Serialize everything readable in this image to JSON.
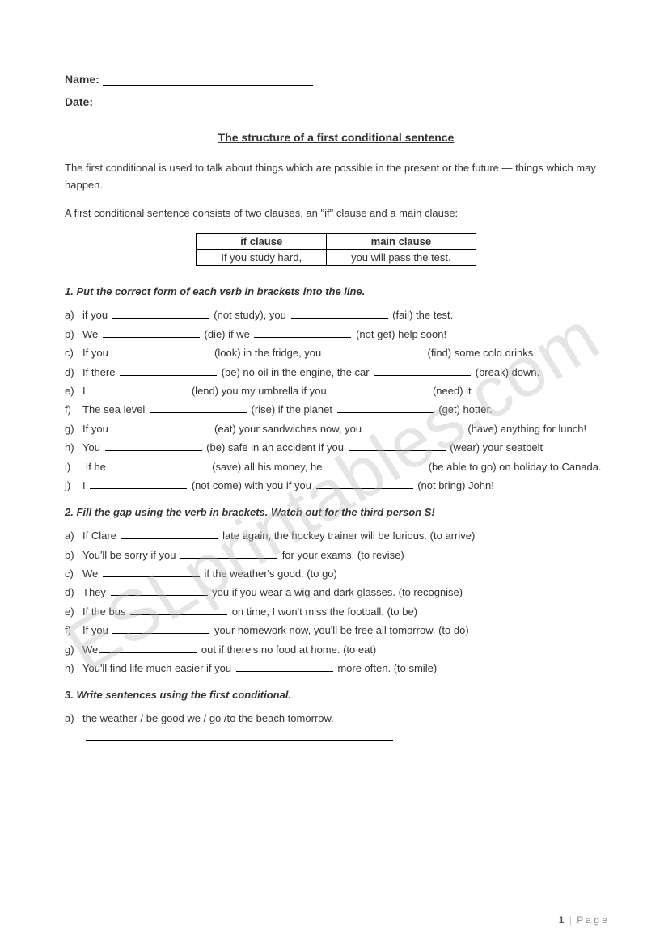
{
  "header": {
    "name_label": "Name:",
    "date_label": "Date:"
  },
  "title": "The structure of a first conditional sentence",
  "intro1": "The first conditional is used to talk about things which are possible in the present or the future — things which may happen.",
  "intro2": "A first conditional sentence consists of two clauses, an \"if\" clause and a main clause:",
  "table": {
    "h1": "if clause",
    "h2": "main clause",
    "c1": "If you study hard,",
    "c2": "you will pass the test."
  },
  "s1": {
    "head": "1. Put the correct form of each verb in brackets into the line.",
    "items": [
      {
        "l": "a)",
        "pre": "if you ",
        "mid1": " (not study), you ",
        "post": " (fail) the test."
      },
      {
        "l": "b)",
        "pre": "We ",
        "mid1": " (die) if we ",
        "post": " (not get) help soon!"
      },
      {
        "l": "c)",
        "pre": "If you ",
        "mid1": " (look) in the fridge, you ",
        "post": " (find) some cold drinks."
      },
      {
        "l": "d)",
        "pre": "If there ",
        "mid1": " (be) no oil in the engine, the car ",
        "post": " (break) down."
      },
      {
        "l": "e)",
        "pre": "I ",
        "mid1": " (lend) you my umbrella if you ",
        "post": " (need) it"
      },
      {
        "l": "f)",
        "pre": "The sea level ",
        "mid1": " (rise) if the planet ",
        "post": " (get) hotter."
      },
      {
        "l": "g)",
        "pre": "If you ",
        "mid1": " (eat) your sandwiches now, you ",
        "post": " (have) anything for lunch!"
      },
      {
        "l": "h)",
        "pre": "You ",
        "mid1": " (be) safe in an accident if you ",
        "post": " (wear) your seatbelt"
      },
      {
        "l": "i)",
        "pre": " If he ",
        "mid1": " (save) all his money, he ",
        "post": " (be able to go) on holiday to Canada."
      },
      {
        "l": "j)",
        "pre": "I ",
        "mid1": " (not come) with you if you ",
        "post": " (not bring) John!"
      }
    ]
  },
  "s2": {
    "head": "2. Fill the gap using the verb in brackets. Watch out for the third person S!",
    "items": [
      {
        "l": "a)",
        "pre": "If Clare ",
        "post": " late again, the hockey trainer will be furious. (to arrive)"
      },
      {
        "l": "b)",
        "pre": "You'll be sorry if you ",
        "post": "  for your exams. (to revise)"
      },
      {
        "l": "c)",
        "pre": "We ",
        "post": " if the weather's good. (to go)"
      },
      {
        "l": "d)",
        "pre": "They ",
        "post": " you if you wear a wig and dark glasses. (to recognise)"
      },
      {
        "l": "e)",
        "pre": "If the bus ",
        "post": " on time, I won't miss the football. (to be)"
      },
      {
        "l": "f)",
        "pre": "If you ",
        "post": " your homework now, you'll be free all tomorrow. (to do)"
      },
      {
        "l": "g)",
        "pre": "We",
        "post": " out if there's no food at home. (to eat)"
      },
      {
        "l": "h)",
        "pre": "You'll find life much easier if you ",
        "post": " more often. (to smile)"
      }
    ]
  },
  "s3": {
    "head": "3. Write sentences using the first conditional.",
    "item_l": "a)",
    "item_text": "the weather / be good we / go /to the beach tomorrow."
  },
  "footer": {
    "page_num": "1",
    "bar": "|",
    "page_word": "P a g e"
  },
  "watermark": "ESLprintables.com"
}
